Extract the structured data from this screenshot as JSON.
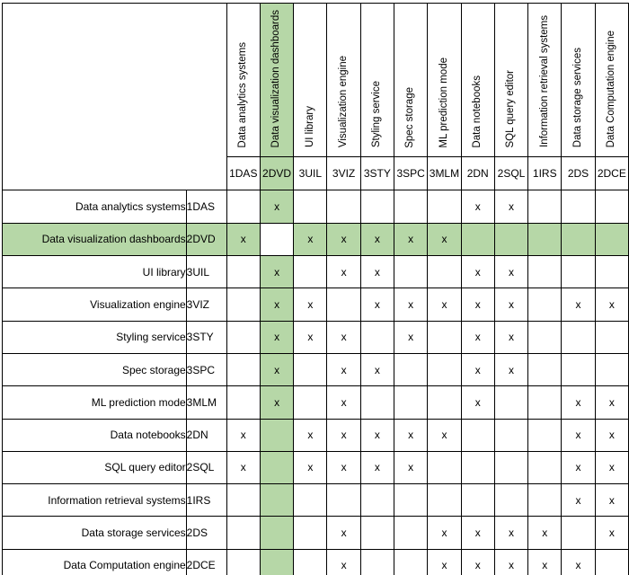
{
  "colors": {
    "highlight": "#b6d7a7",
    "diagonal": "#a0a0a0",
    "border": "#000000",
    "mark": "#333333",
    "background": "#ffffff"
  },
  "matrix": {
    "mark": "x",
    "highlighted_code": "2DVD",
    "components": [
      {
        "code": "1DAS",
        "label": "Data analytics systems"
      },
      {
        "code": "2DVD",
        "label": "Data visualization dashboards"
      },
      {
        "code": "3UIL",
        "label": "UI library"
      },
      {
        "code": "3VIZ",
        "label": "Visualization engine"
      },
      {
        "code": "3STY",
        "label": "Styling service"
      },
      {
        "code": "3SPC",
        "label": "Spec storage"
      },
      {
        "code": "3MLM",
        "label": "ML prediction mode"
      },
      {
        "code": "2DN",
        "label": "Data notebooks"
      },
      {
        "code": "2SQL",
        "label": "SQL query editor"
      },
      {
        "code": "1IRS",
        "label": "Information retrieval systems"
      },
      {
        "code": "2DS",
        "label": "Data storage services"
      },
      {
        "code": "2DCE",
        "label": "Data Computation engine"
      }
    ],
    "cells": [
      [
        "",
        "x",
        "",
        "",
        "",
        "",
        "",
        "x",
        "x",
        "",
        "",
        ""
      ],
      [
        "x",
        "",
        "x",
        "x",
        "x",
        "x",
        "x",
        "",
        "",
        "",
        "",
        ""
      ],
      [
        "",
        "x",
        "",
        "x",
        "x",
        "",
        "",
        "x",
        "x",
        "",
        "",
        ""
      ],
      [
        "",
        "x",
        "x",
        "",
        "x",
        "x",
        "x",
        "x",
        "x",
        "",
        "x",
        "x"
      ],
      [
        "",
        "x",
        "x",
        "x",
        "",
        "x",
        "",
        "x",
        "x",
        "",
        "",
        ""
      ],
      [
        "",
        "x",
        "",
        "x",
        "x",
        "",
        "",
        "x",
        "x",
        "",
        "",
        ""
      ],
      [
        "",
        "x",
        "",
        "x",
        "",
        "",
        "",
        "x",
        "",
        "",
        "x",
        "x"
      ],
      [
        "x",
        "",
        "x",
        "x",
        "x",
        "x",
        "x",
        "",
        "",
        "",
        "x",
        "x"
      ],
      [
        "x",
        "",
        "x",
        "x",
        "x",
        "x",
        "",
        "",
        "",
        "",
        "x",
        "x"
      ],
      [
        "",
        "",
        "",
        "",
        "",
        "",
        "",
        "",
        "",
        "",
        "x",
        "x"
      ],
      [
        "",
        "",
        "",
        "x",
        "",
        "",
        "x",
        "x",
        "x",
        "x",
        "",
        "x"
      ],
      [
        "",
        "",
        "",
        "x",
        "",
        "",
        "x",
        "x",
        "x",
        "x",
        "x",
        ""
      ]
    ]
  }
}
